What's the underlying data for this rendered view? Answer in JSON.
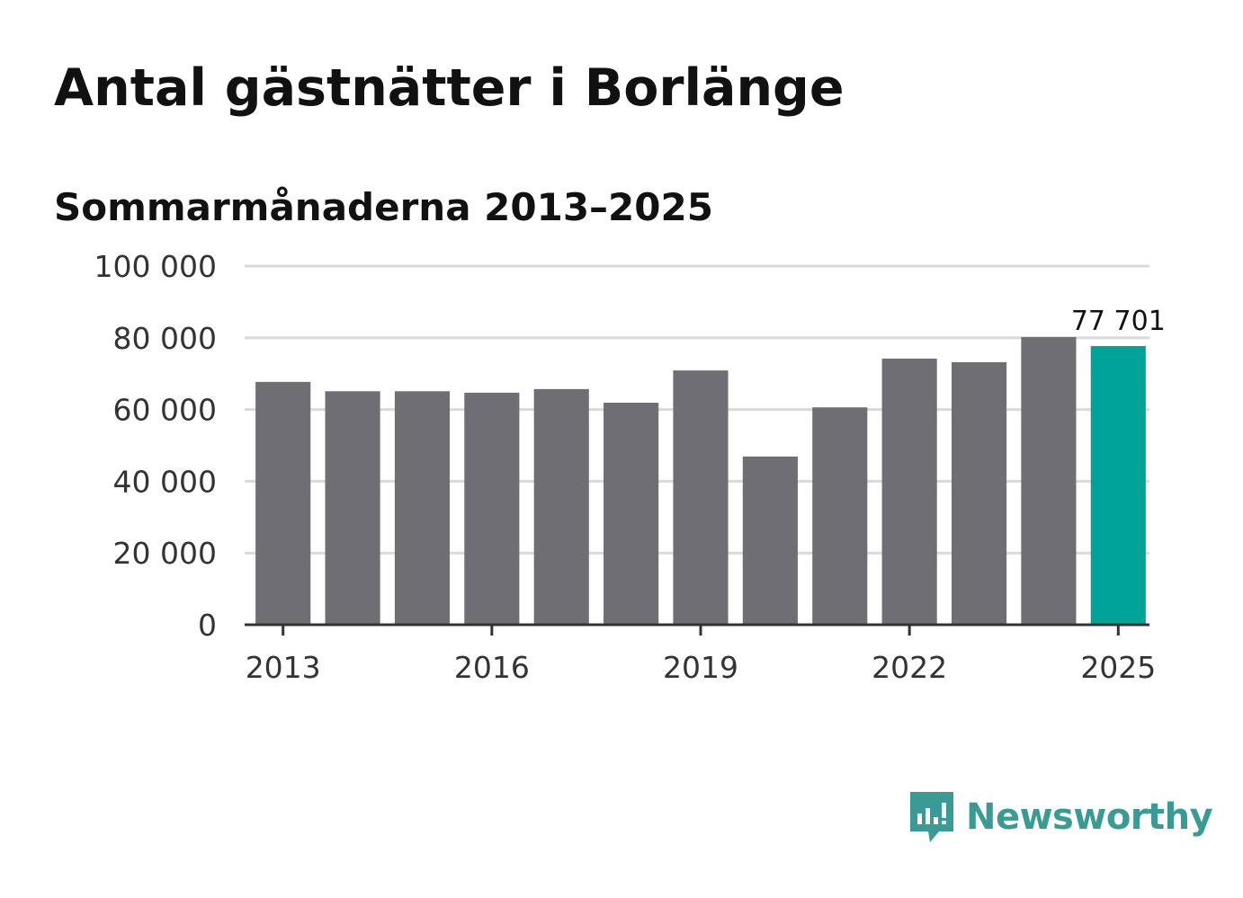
{
  "title": "Antal gästnätter i Borlänge",
  "subtitle": "Sommarmånaderna 2013–2025",
  "brand": {
    "name": "Newsworthy",
    "color": "#3a9b94",
    "icon": "newsworthy-logo-icon"
  },
  "colors": {
    "bar": "#6f6e74",
    "highlight": "#00a398",
    "grid": "#d9d9d9",
    "axis": "#333333"
  },
  "chart_data": {
    "type": "bar",
    "categories": [
      "2013",
      "2014",
      "2015",
      "2016",
      "2017",
      "2018",
      "2019",
      "2020",
      "2021",
      "2022",
      "2023",
      "2024",
      "2025"
    ],
    "values": [
      67700,
      65100,
      65100,
      64700,
      65700,
      61900,
      70900,
      46900,
      60600,
      74200,
      73200,
      80200,
      77701
    ],
    "highlight_index": 12,
    "data_labels": [
      {
        "index": 12,
        "text": "77 701"
      }
    ],
    "ylim": [
      0,
      100000
    ],
    "yticks": [
      0,
      20000,
      40000,
      60000,
      80000,
      100000
    ],
    "ytick_labels": [
      "0",
      "20 000",
      "40 000",
      "60 000",
      "80 000",
      "100 000"
    ],
    "xtick_labels": [
      "2013",
      "2016",
      "2019",
      "2022",
      "2025"
    ],
    "xtick_indices": [
      0,
      3,
      6,
      9,
      12
    ],
    "grid": true,
    "legend": "none",
    "xlabel": "",
    "ylabel": ""
  }
}
